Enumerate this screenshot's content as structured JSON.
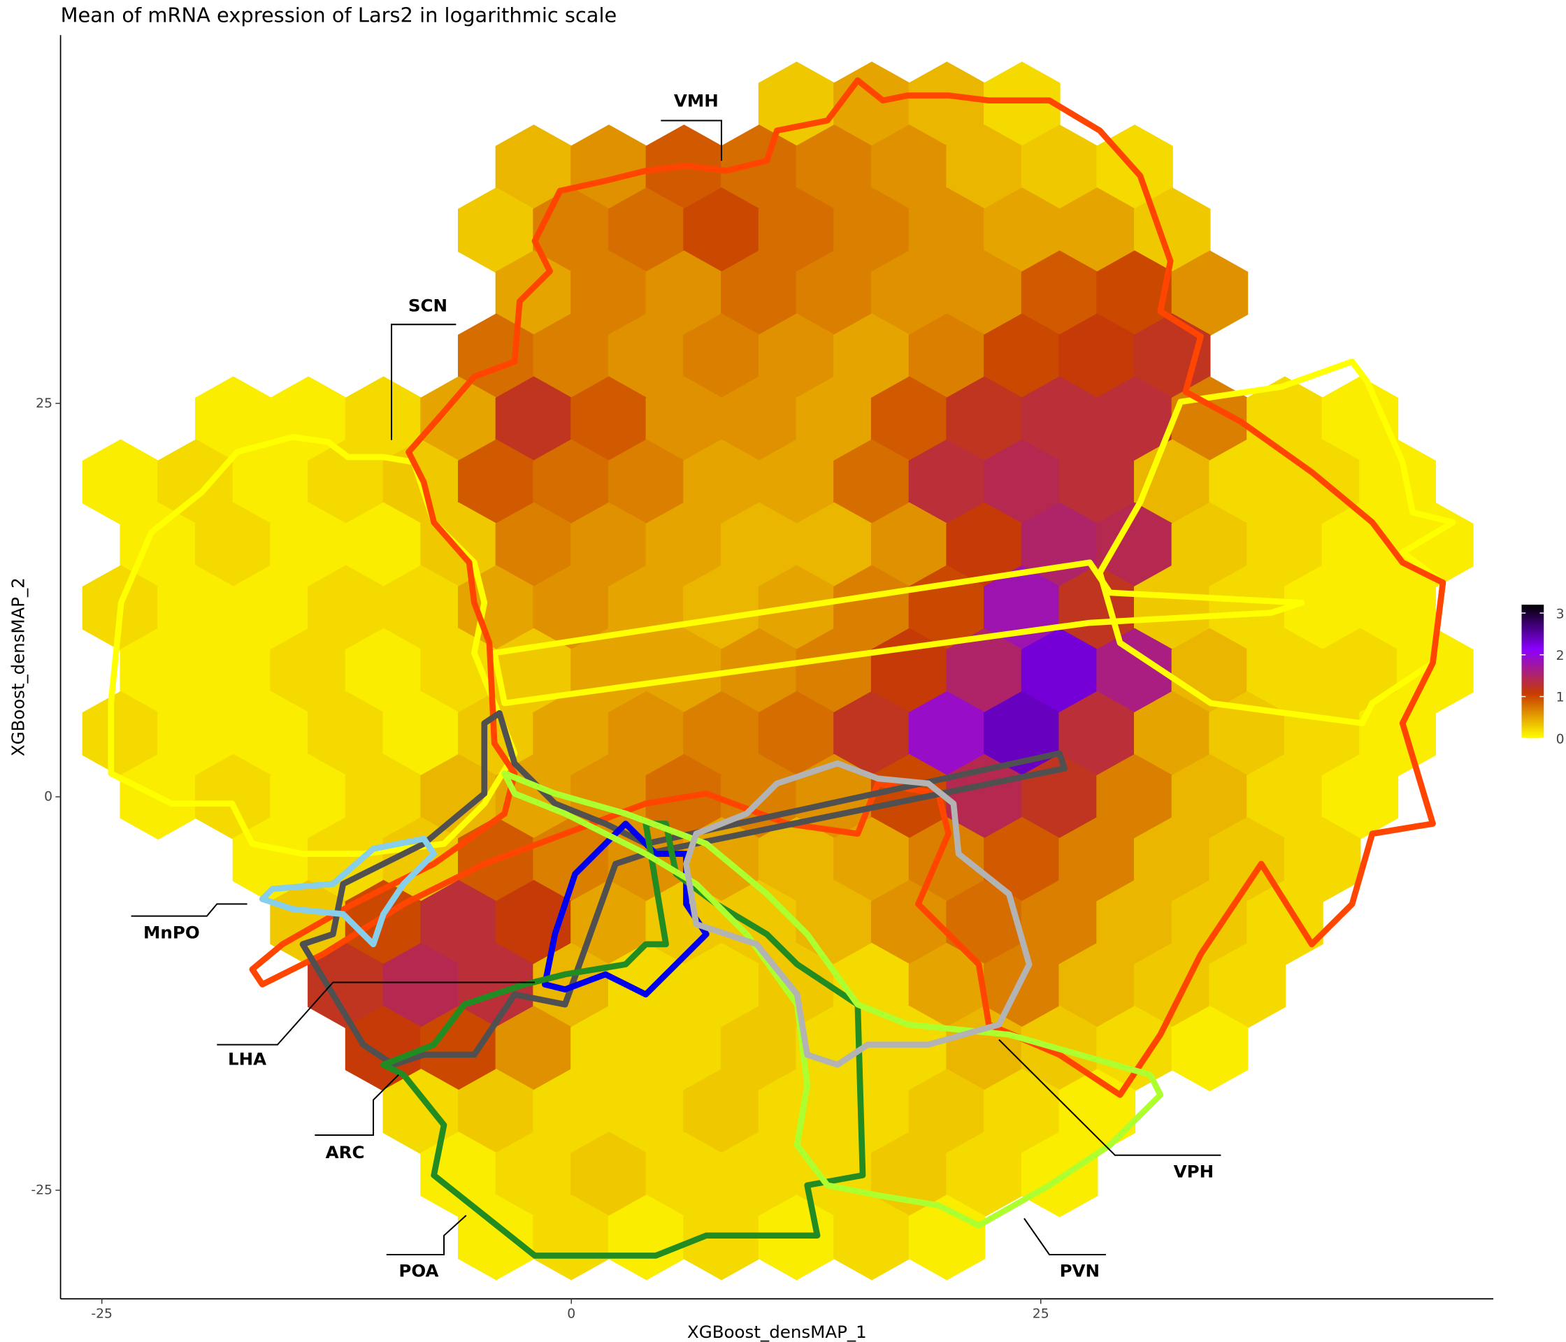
{
  "chart_data": {
    "type": "hexbin",
    "title": "Mean of mRNA expression of Lars2 in logarithmic scale",
    "xlabel": "XGBoost_densMAP_1",
    "ylabel": "XGBoost_densMAP_2",
    "xlim": [
      -27.2,
      49.1
    ],
    "ylim": [
      -31.9,
      48.4
    ],
    "xticks": [
      -25,
      0,
      25
    ],
    "yticks": [
      -25,
      0,
      25
    ],
    "clim": [
      0,
      3.2
    ],
    "cticks": [
      0,
      1,
      2,
      3
    ],
    "colorscale": [
      "#ffff00",
      "#c83c00",
      "#8a00ff",
      "#000000"
    ],
    "annotations": [
      "VMH",
      "SCN",
      "MnPO",
      "LHA",
      "ARC",
      "POA",
      "PVN",
      "VPH"
    ],
    "rows": [
      {
        "y": 44,
        "x": [
          12,
          16,
          20,
          24
        ],
        "values": [
          0.3,
          0.5,
          0.4,
          0.2
        ]
      },
      {
        "y": 40,
        "x": [
          -2,
          2,
          6,
          10,
          14,
          18,
          22,
          26,
          30
        ],
        "values": [
          0.4,
          0.6,
          0.9,
          0.8,
          0.7,
          0.6,
          0.4,
          0.3,
          0.2
        ]
      },
      {
        "y": 36,
        "x": [
          -4,
          0,
          4,
          8,
          12,
          16,
          20,
          24,
          28,
          32
        ],
        "values": [
          0.3,
          0.7,
          0.8,
          1.0,
          0.8,
          0.7,
          0.6,
          0.5,
          0.5,
          0.3
        ]
      },
      {
        "y": 32,
        "x": [
          -2,
          2,
          6,
          10,
          14,
          18,
          22,
          26,
          30,
          34
        ],
        "values": [
          0.5,
          0.7,
          0.6,
          0.8,
          0.7,
          0.6,
          0.6,
          0.9,
          1.0,
          0.6
        ]
      },
      {
        "y": 28,
        "x": [
          -4,
          0,
          4,
          8,
          12,
          16,
          20,
          24,
          28,
          32
        ],
        "values": [
          0.8,
          0.7,
          0.6,
          0.7,
          0.6,
          0.5,
          0.7,
          1.0,
          1.1,
          1.2
        ]
      },
      {
        "y": 24,
        "x": [
          -18,
          -14,
          -10,
          -6,
          -2,
          2,
          6,
          10,
          14,
          18,
          22,
          26,
          30,
          34,
          38,
          42
        ],
        "values": [
          0.1,
          0.1,
          0.2,
          0.5,
          1.2,
          0.9,
          0.6,
          0.6,
          0.5,
          0.9,
          1.2,
          1.3,
          1.3,
          0.7,
          0.2,
          0.1
        ]
      },
      {
        "y": 20,
        "x": [
          -24,
          -20,
          -16,
          -12,
          -8,
          -4,
          0,
          4,
          8,
          12,
          16,
          20,
          24,
          28,
          32,
          36,
          40,
          44
        ],
        "values": [
          0.1,
          0.2,
          0.1,
          0.2,
          0.3,
          0.9,
          0.8,
          0.7,
          0.5,
          0.5,
          0.8,
          1.3,
          1.4,
          1.3,
          0.4,
          0.2,
          0.2,
          0.1
        ]
      },
      {
        "y": 16,
        "x": [
          -22,
          -18,
          -14,
          -10,
          -6,
          -2,
          2,
          6,
          10,
          14,
          18,
          22,
          26,
          30,
          34,
          38,
          42,
          46
        ],
        "values": [
          0.1,
          0.2,
          0.1,
          0.1,
          0.3,
          0.7,
          0.6,
          0.5,
          0.4,
          0.4,
          0.6,
          1.1,
          1.5,
          1.4,
          0.3,
          0.2,
          0.1,
          0.1
        ]
      },
      {
        "y": 12,
        "x": [
          -24,
          -20,
          -16,
          -12,
          -8,
          -4,
          0,
          4,
          8,
          12,
          16,
          20,
          24,
          28,
          32,
          36,
          40,
          44
        ],
        "values": [
          0.2,
          0.1,
          0.1,
          0.2,
          0.2,
          0.5,
          0.6,
          0.5,
          0.4,
          0.5,
          0.7,
          1.0,
          1.8,
          1.2,
          0.3,
          0.2,
          0.1,
          0.1
        ]
      },
      {
        "y": 8,
        "x": [
          -22,
          -18,
          -14,
          -10,
          -6,
          -2,
          2,
          6,
          10,
          14,
          18,
          22,
          26,
          30,
          34,
          38,
          42,
          46
        ],
        "values": [
          0.1,
          0.1,
          0.2,
          0.1,
          0.2,
          0.3,
          0.5,
          0.5,
          0.6,
          0.7,
          1.1,
          1.5,
          2.3,
          1.6,
          0.4,
          0.2,
          0.2,
          0.1
        ]
      },
      {
        "y": 4,
        "x": [
          -24,
          -20,
          -16,
          -12,
          -8,
          -4,
          0,
          4,
          8,
          12,
          16,
          20,
          24,
          28,
          32,
          36,
          40,
          44
        ],
        "values": [
          0.2,
          0.1,
          0.1,
          0.2,
          0.1,
          0.3,
          0.5,
          0.6,
          0.7,
          0.8,
          1.2,
          1.9,
          2.4,
          1.3,
          0.5,
          0.3,
          0.2,
          0.1
        ]
      },
      {
        "y": 0,
        "x": [
          -22,
          -18,
          -14,
          -10,
          -6,
          -2,
          2,
          6,
          10,
          14,
          18,
          22,
          26,
          30,
          34,
          38,
          42
        ],
        "values": [
          0.1,
          0.2,
          0.1,
          0.2,
          0.4,
          0.5,
          0.6,
          0.8,
          0.7,
          0.6,
          1.0,
          1.4,
          1.2,
          0.7,
          0.4,
          0.2,
          0.1
        ]
      },
      {
        "y": -4,
        "x": [
          -16,
          -12,
          -8,
          -4,
          0,
          4,
          8,
          12,
          16,
          20,
          24,
          28,
          32,
          36,
          40
        ],
        "values": [
          0.1,
          0.2,
          0.3,
          0.9,
          0.7,
          0.6,
          0.5,
          0.4,
          0.5,
          0.7,
          0.9,
          0.7,
          0.4,
          0.3,
          0.2
        ]
      },
      {
        "y": -8,
        "x": [
          -14,
          -10,
          -6,
          -2,
          2,
          6,
          10,
          14,
          18,
          22,
          26,
          30,
          34,
          38
        ],
        "values": [
          0.3,
          1.0,
          1.3,
          1.1,
          0.5,
          0.3,
          0.3,
          0.4,
          0.6,
          0.8,
          0.7,
          0.4,
          0.3,
          0.2
        ]
      },
      {
        "y": -12,
        "x": [
          -12,
          -8,
          -4,
          0,
          4,
          8,
          12,
          16,
          20,
          24,
          28,
          32,
          36
        ],
        "values": [
          1.2,
          1.4,
          1.3,
          0.4,
          0.2,
          0.2,
          0.3,
          0.2,
          0.5,
          0.7,
          0.4,
          0.3,
          0.2
        ]
      },
      {
        "y": -16,
        "x": [
          -10,
          -6,
          -2,
          2,
          6,
          10,
          14,
          18,
          22,
          26,
          30,
          34
        ],
        "values": [
          1.1,
          1.0,
          0.6,
          0.2,
          0.2,
          0.3,
          0.2,
          0.2,
          0.4,
          0.3,
          0.2,
          0.1
        ]
      },
      {
        "y": -20,
        "x": [
          -8,
          -4,
          0,
          4,
          8,
          12,
          16,
          20,
          24,
          28
        ],
        "values": [
          0.2,
          0.3,
          0.2,
          0.2,
          0.3,
          0.2,
          0.2,
          0.3,
          0.2,
          0.1
        ]
      },
      {
        "y": -24,
        "x": [
          -6,
          -2,
          2,
          6,
          10,
          14,
          18,
          22,
          26
        ],
        "values": [
          0.1,
          0.2,
          0.3,
          0.2,
          0.2,
          0.2,
          0.3,
          0.2,
          0.1
        ]
      },
      {
        "y": -28,
        "x": [
          -4,
          0,
          4,
          8,
          12,
          16,
          20
        ],
        "values": [
          0.1,
          0.2,
          0.1,
          0.2,
          0.1,
          0.2,
          0.1
        ]
      }
    ]
  }
}
